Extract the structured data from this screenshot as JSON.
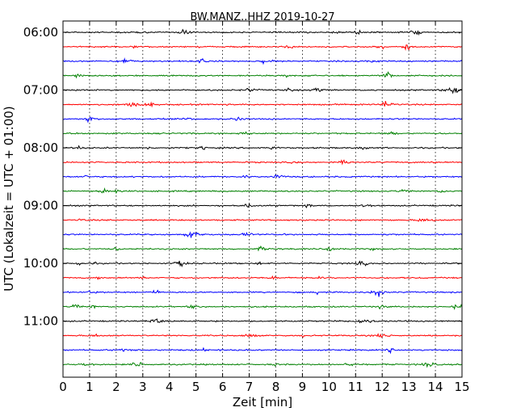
{
  "chart_data": {
    "type": "line",
    "title": "BW.MANZ..HHZ 2019-10-27",
    "xlabel": "Zeit  [min]",
    "ylabel": "UTC (Lokalzeit = UTC + 01:00)",
    "xlim": [
      0,
      15
    ],
    "x_ticks": [
      "0",
      "1",
      "2",
      "3",
      "4",
      "5",
      "6",
      "7",
      "8",
      "9",
      "10",
      "11",
      "12",
      "13",
      "14",
      "15"
    ],
    "y_ticks": [
      "06:00",
      "07:00",
      "08:00",
      "09:00",
      "10:00",
      "11:00"
    ],
    "grid": "vertical dotted",
    "trace_colors": [
      "#000000",
      "#ff0000",
      "#0000ff",
      "#008000"
    ],
    "rows": [
      {
        "start": "06:00",
        "color": "#000000"
      },
      {
        "start": "06:15",
        "color": "#ff0000"
      },
      {
        "start": "06:30",
        "color": "#0000ff"
      },
      {
        "start": "06:45",
        "color": "#008000"
      },
      {
        "start": "07:00",
        "color": "#000000"
      },
      {
        "start": "07:15",
        "color": "#ff0000"
      },
      {
        "start": "07:30",
        "color": "#0000ff"
      },
      {
        "start": "07:45",
        "color": "#008000"
      },
      {
        "start": "08:00",
        "color": "#000000"
      },
      {
        "start": "08:15",
        "color": "#ff0000"
      },
      {
        "start": "08:30",
        "color": "#0000ff"
      },
      {
        "start": "08:45",
        "color": "#008000"
      },
      {
        "start": "09:00",
        "color": "#000000"
      },
      {
        "start": "09:15",
        "color": "#ff0000"
      },
      {
        "start": "09:30",
        "color": "#0000ff"
      },
      {
        "start": "09:45",
        "color": "#008000"
      },
      {
        "start": "10:00",
        "color": "#000000"
      },
      {
        "start": "10:15",
        "color": "#ff0000"
      },
      {
        "start": "10:30",
        "color": "#0000ff"
      },
      {
        "start": "10:45",
        "color": "#008000"
      },
      {
        "start": "11:00",
        "color": "#000000"
      },
      {
        "start": "11:15",
        "color": "#ff0000"
      },
      {
        "start": "11:30",
        "color": "#0000ff"
      },
      {
        "start": "11:45",
        "color": "#008000"
      }
    ]
  }
}
